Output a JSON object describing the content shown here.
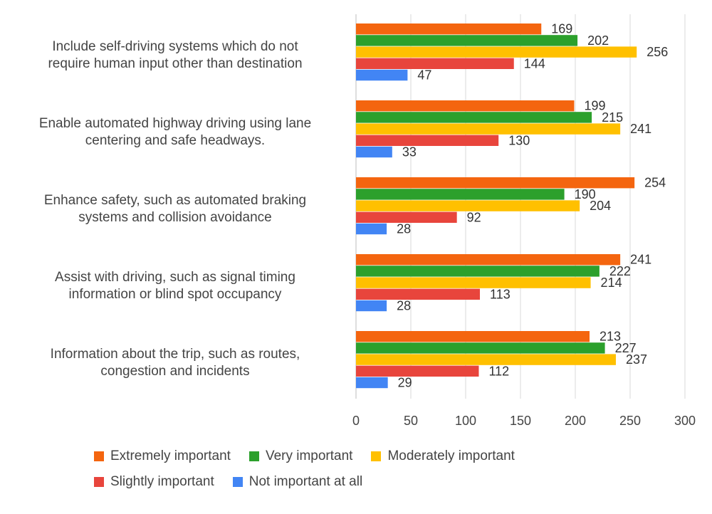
{
  "chart_data": {
    "type": "bar",
    "orientation": "horizontal",
    "categories": [
      [
        "Include self-driving systems which do not",
        "require human input other than destination"
      ],
      [
        "Enable automated highway driving using lane",
        "centering and safe headways."
      ],
      [
        "Enhance safety, such as automated braking",
        "systems and collision avoidance"
      ],
      [
        "Assist with driving, such as signal timing",
        "information or blind spot occupancy"
      ],
      [
        "Information about the trip, such as routes,",
        "congestion and incidents"
      ]
    ],
    "series": [
      {
        "name": "Extremely important",
        "color": "#f4650f",
        "values": [
          169,
          199,
          254,
          241,
          213
        ]
      },
      {
        "name": "Very important",
        "color": "#2ca02c",
        "values": [
          202,
          215,
          190,
          222,
          227
        ]
      },
      {
        "name": "Moderately important",
        "color": "#ffc000",
        "values": [
          256,
          241,
          204,
          214,
          237
        ]
      },
      {
        "name": "Slightly important",
        "color": "#e8453c",
        "values": [
          144,
          130,
          92,
          113,
          112
        ]
      },
      {
        "name": "Not important at all",
        "color": "#4285f4",
        "values": [
          47,
          33,
          28,
          28,
          29
        ]
      }
    ],
    "xlim": [
      0,
      300
    ],
    "xticks": [
      "0",
      "50",
      "100",
      "150",
      "200",
      "250",
      "300"
    ],
    "grid": true,
    "legend_position": "bottom"
  }
}
